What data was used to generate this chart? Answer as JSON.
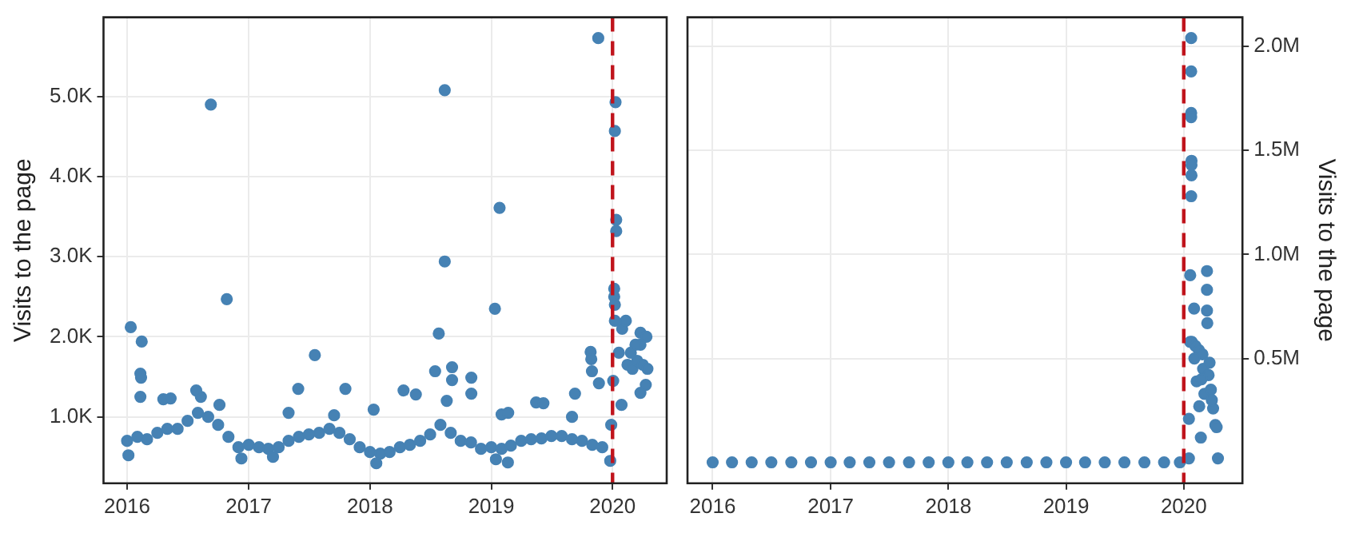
{
  "chart_data": [
    {
      "type": "scatter",
      "ylabel": "Visits to the page",
      "xlim": [
        "2015-10-22",
        "2020-06-12"
      ],
      "xticks": [
        "2016",
        "2017",
        "2018",
        "2019",
        "2020"
      ],
      "ylim": [
        170,
        5990
      ],
      "yticks": [
        {
          "value": 1000,
          "label": "1.0K"
        },
        {
          "value": 2000,
          "label": "2.0K"
        },
        {
          "value": 3000,
          "label": "3.0K"
        },
        {
          "value": 4000,
          "label": "4.0K"
        },
        {
          "value": 5000,
          "label": "5.0K"
        }
      ],
      "grid": true,
      "marker": "circle",
      "ref_lines": [
        {
          "axis": "x",
          "value": "2020-01-01",
          "color": "#c0141c",
          "line_style": "dashed"
        }
      ],
      "series": [
        {
          "color": "#4682b4",
          "x": [
            "2016-01-01",
            "2016-02-01",
            "2016-03-01",
            "2016-04-01",
            "2016-05-01",
            "2016-06-01",
            "2016-07-01",
            "2016-08-01",
            "2016-09-01",
            "2016-10-01",
            "2016-11-01",
            "2016-12-01",
            "2017-01-01",
            "2017-02-01",
            "2017-03-01",
            "2017-04-01",
            "2017-05-01",
            "2017-06-01",
            "2017-07-01",
            "2017-08-01",
            "2017-09-01",
            "2017-10-01",
            "2017-11-01",
            "2017-12-01",
            "2018-01-01",
            "2018-02-01",
            "2018-03-01",
            "2018-04-01",
            "2018-05-01",
            "2018-06-01",
            "2018-07-01",
            "2018-08-01",
            "2018-09-01",
            "2018-10-01",
            "2018-11-01",
            "2018-12-01",
            "2019-01-01",
            "2019-02-01",
            "2019-03-01",
            "2019-04-01",
            "2019-05-01",
            "2019-06-01",
            "2019-07-01",
            "2019-08-01",
            "2019-09-01",
            "2019-10-01",
            "2019-11-01",
            "2019-12-01",
            "2020-01-20",
            "2020-02-15",
            "2020-03-01",
            "2020-03-15",
            "2020-04-01",
            "2020-04-15",
            "2016-01-05",
            "2016-12-10",
            "2017-03-15",
            "2018-01-20",
            "2019-01-15",
            "2019-02-20",
            "2019-12-25",
            "2016-08-10",
            "2016-10-05",
            "2017-05-01",
            "2017-09-15",
            "2018-08-20",
            "2019-02-01",
            "2019-09-01",
            "2019-12-28",
            "2016-01-12",
            "2016-02-14",
            "2016-02-10",
            "2016-02-12",
            "2016-02-10",
            "2016-04-19",
            "2016-05-11",
            "2016-09-09",
            "2016-10-27",
            "2016-07-27",
            "2017-07-19",
            "2017-05-30",
            "2017-10-19",
            "2018-01-12",
            "2018-04-12",
            "2018-05-19",
            "2018-07-16",
            "2018-07-27",
            "2018-08-14",
            "2018-08-14",
            "2018-09-05",
            "2018-09-05",
            "2018-11-02",
            "2018-11-02",
            "2019-01-26",
            "2019-01-12",
            "2019-02-21",
            "2019-05-16",
            "2019-06-07",
            "2019-09-10",
            "2019-10-27",
            "2019-10-29",
            "2019-10-31",
            "2019-11-19",
            "2019-11-21",
            "2020-01-10",
            "2020-01-08",
            "2020-01-12",
            "2020-01-12",
            "2020-01-06",
            "2020-01-06",
            "2020-01-08",
            "2020-01-08",
            "2020-01-30",
            "2020-02-10",
            "2020-01-28",
            "2020-01-03",
            "2020-03-25",
            "2020-03-25",
            "2020-03-25",
            "2020-03-10",
            "2020-02-25",
            "2020-04-10",
            "2020-04-12"
          ],
          "values": [
            700,
            750,
            720,
            800,
            850,
            850,
            950,
            1050,
            1000,
            900,
            750,
            620,
            650,
            620,
            600,
            620,
            700,
            750,
            780,
            800,
            850,
            800,
            720,
            620,
            560,
            540,
            560,
            620,
            650,
            700,
            780,
            900,
            800,
            700,
            680,
            600,
            620,
            600,
            640,
            700,
            720,
            730,
            760,
            760,
            720,
            700,
            650,
            620,
            1800,
            1650,
            1600,
            1700,
            1650,
            1600,
            520,
            480,
            500,
            420,
            470,
            430,
            450,
            1250,
            1150,
            1050,
            1020,
            1200,
            1030,
            1000,
            900,
            2120,
            1940,
            1540,
            1490,
            1250,
            1220,
            1230,
            4900,
            2470,
            1330,
            1770,
            1350,
            1350,
            1090,
            1330,
            1280,
            1570,
            2040,
            5080,
            2940,
            1620,
            1460,
            1490,
            1290,
            3610,
            2350,
            1050,
            1180,
            1170,
            1290,
            1810,
            1720,
            1570,
            5730,
            1420,
            4930,
            4570,
            3460,
            3320,
            2600,
            2500,
            2400,
            2200,
            2100,
            2200,
            1150,
            1450,
            2050,
            1300,
            1900,
            1900,
            1800,
            1400,
            2000
          ]
        }
      ]
    },
    {
      "type": "scatter",
      "y2label": "Visits to the page",
      "xlim": [
        "2015-10-15",
        "2020-07-01"
      ],
      "xticks": [
        "2016",
        "2017",
        "2018",
        "2019",
        "2020"
      ],
      "y2lim": [
        -100000,
        2140000
      ],
      "y2ticks": [
        {
          "value": 500000,
          "label": "0.5M"
        },
        {
          "value": 1000000,
          "label": "1.0M"
        },
        {
          "value": 1500000,
          "label": "1.5M"
        },
        {
          "value": 2000000,
          "label": "2.0M"
        }
      ],
      "grid": true,
      "marker": "circle",
      "ref_lines": [
        {
          "axis": "x",
          "value": "2020-01-01",
          "color": "#c0141c",
          "line_style": "dashed"
        }
      ],
      "series": [
        {
          "color": "#4682b4",
          "axis": "y2",
          "x": [
            "2016-01-01",
            "2016-03-01",
            "2016-05-01",
            "2016-07-01",
            "2016-09-01",
            "2016-11-01",
            "2017-01-01",
            "2017-03-01",
            "2017-05-01",
            "2017-07-01",
            "2017-09-01",
            "2017-11-01",
            "2018-01-01",
            "2018-03-01",
            "2018-05-01",
            "2018-07-01",
            "2018-09-01",
            "2018-11-01",
            "2019-01-01",
            "2019-03-01",
            "2019-05-01",
            "2019-07-01",
            "2019-09-01",
            "2019-11-01",
            "2019-12-20",
            "2020-01-17",
            "2020-01-24",
            "2020-01-24",
            "2020-01-24",
            "2020-01-24",
            "2020-01-25",
            "2020-01-25",
            "2020-01-25",
            "2020-01-24",
            "2020-01-21",
            "2020-03-13",
            "2020-03-13",
            "2020-02-02",
            "2020-03-13",
            "2020-03-14",
            "2020-01-26",
            "2020-01-21",
            "2020-02-06",
            "2020-02-17",
            "2020-02-28",
            "2020-03-21",
            "2020-02-03",
            "2020-03-05",
            "2020-02-10",
            "2020-02-18",
            "2020-02-23",
            "2020-01-17",
            "2020-03-25",
            "2020-04-01",
            "2020-04-08",
            "2020-04-12",
            "2020-04-16",
            "2020-03-01",
            "2020-03-18",
            "2020-02-25",
            "2020-03-28"
          ],
          "values": [
            1000,
            1000,
            1000,
            1000,
            1000,
            1000,
            1000,
            1000,
            1000,
            1000,
            1000,
            1000,
            1000,
            1000,
            1000,
            1000,
            1000,
            1000,
            1000,
            1000,
            1000,
            1000,
            1000,
            1000,
            1000,
            20000,
            2040000,
            1880000,
            1680000,
            1660000,
            1450000,
            1430000,
            1380000,
            1280000,
            900000,
            920000,
            830000,
            740000,
            730000,
            670000,
            580000,
            580000,
            560000,
            540000,
            520000,
            480000,
            500000,
            330000,
            390000,
            270000,
            120000,
            210000,
            350000,
            260000,
            180000,
            170000,
            20000,
            450000,
            420000,
            400000,
            300000
          ]
        }
      ]
    }
  ]
}
